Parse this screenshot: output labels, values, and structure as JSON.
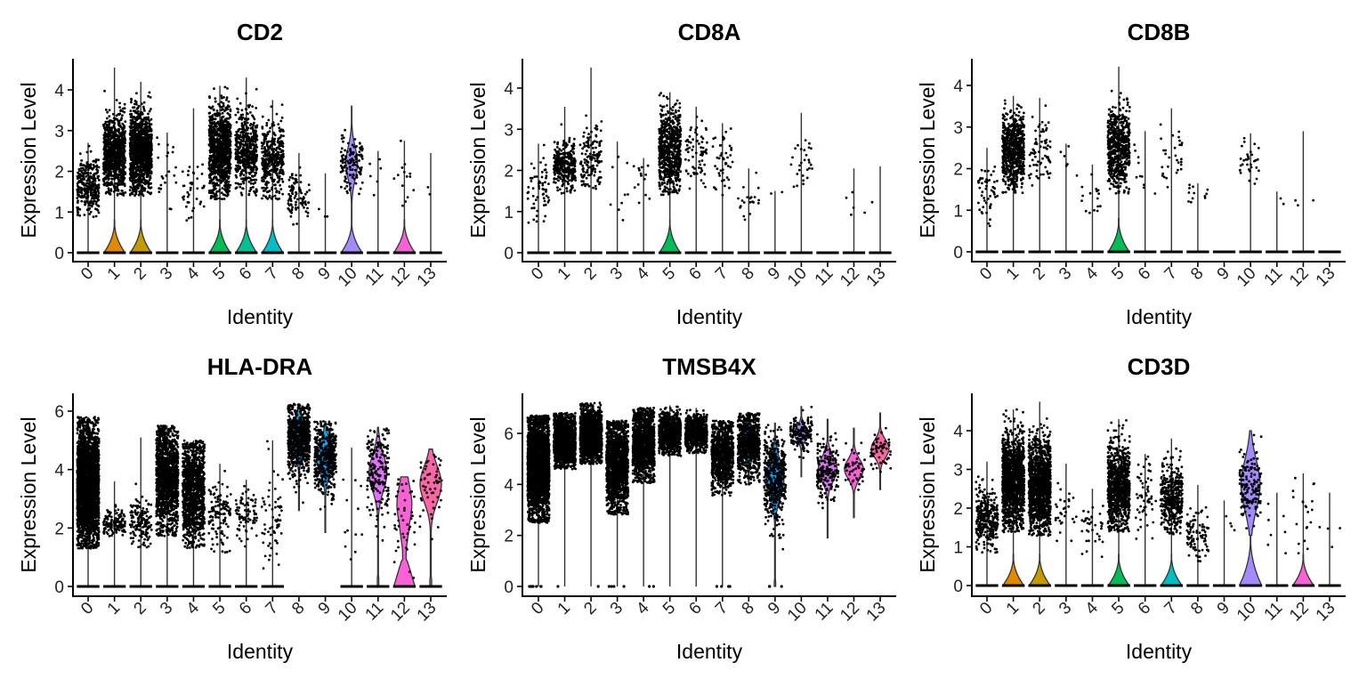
{
  "chart_data": [
    {
      "type": "violin",
      "title": "CD2",
      "xlabel": "Identity",
      "ylabel": "Expression Level",
      "categories": [
        "0",
        "1",
        "2",
        "3",
        "4",
        "5",
        "6",
        "7",
        "8",
        "9",
        "10",
        "11",
        "12",
        "13"
      ],
      "yticks": [
        0,
        1,
        2,
        3,
        4
      ],
      "ylim": [
        0,
        4.75
      ],
      "grid": false,
      "legend": "none",
      "violins": [
        {
          "max": 2.7,
          "bulge": 0.0,
          "center": 1.65,
          "spread": 0.35,
          "n": 320,
          "colored": false
        },
        {
          "max": 4.55,
          "bulge": 0.55,
          "center": 2.4,
          "spread": 0.45,
          "n": 900,
          "colored": true
        },
        {
          "max": 4.2,
          "bulge": 0.6,
          "center": 2.5,
          "spread": 0.5,
          "n": 1100,
          "colored": true
        },
        {
          "max": 2.95,
          "bulge": 0.0,
          "center": 2.0,
          "spread": 0.45,
          "n": 22,
          "colored": false
        },
        {
          "max": 3.55,
          "bulge": 0.0,
          "center": 1.5,
          "spread": 0.35,
          "n": 40,
          "colored": false
        },
        {
          "max": 4.1,
          "bulge": 0.8,
          "center": 2.5,
          "spread": 0.55,
          "n": 900,
          "colored": true
        },
        {
          "max": 4.3,
          "bulge": 0.75,
          "center": 2.5,
          "spread": 0.5,
          "n": 500,
          "colored": true
        },
        {
          "max": 3.75,
          "bulge": 0.7,
          "center": 2.3,
          "spread": 0.45,
          "n": 400,
          "colored": true
        },
        {
          "max": 2.45,
          "bulge": 0.0,
          "center": 1.35,
          "spread": 0.3,
          "n": 90,
          "colored": false
        },
        {
          "max": 1.95,
          "bulge": 0.0,
          "center": 1.2,
          "spread": 0.2,
          "n": 3,
          "colored": false
        },
        {
          "max": 3.6,
          "bulge": 1.0,
          "center": 2.2,
          "spread": 0.35,
          "n": 120,
          "colored": true
        },
        {
          "max": 2.5,
          "bulge": 0.0,
          "center": 1.8,
          "spread": 0.4,
          "n": 6,
          "colored": false
        },
        {
          "max": 2.75,
          "bulge": 0.65,
          "center": 1.8,
          "spread": 0.55,
          "n": 14,
          "colored": true
        },
        {
          "max": 2.45,
          "bulge": 0.0,
          "center": 1.9,
          "spread": 0.5,
          "n": 2,
          "colored": false
        }
      ]
    },
    {
      "type": "violin",
      "title": "CD8A",
      "xlabel": "Identity",
      "ylabel": "Expression Level",
      "categories": [
        "0",
        "1",
        "2",
        "3",
        "4",
        "5",
        "6",
        "7",
        "8",
        "9",
        "10",
        "11",
        "12",
        "13"
      ],
      "yticks": [
        0,
        1,
        2,
        3,
        4
      ],
      "ylim": [
        0,
        4.7
      ],
      "grid": false,
      "legend": "none",
      "violins": [
        {
          "max": 2.65,
          "bulge": 0.0,
          "center": 1.6,
          "spread": 0.4,
          "n": 60,
          "colored": false
        },
        {
          "max": 3.55,
          "bulge": 0.0,
          "center": 2.1,
          "spread": 0.3,
          "n": 320,
          "colored": false
        },
        {
          "max": 4.5,
          "bulge": 0.0,
          "center": 2.25,
          "spread": 0.4,
          "n": 140,
          "colored": false
        },
        {
          "max": 2.7,
          "bulge": 0.0,
          "center": 1.6,
          "spread": 0.45,
          "n": 9,
          "colored": false
        },
        {
          "max": 2.3,
          "bulge": 0.0,
          "center": 1.6,
          "spread": 0.4,
          "n": 14,
          "colored": false
        },
        {
          "max": 3.9,
          "bulge": 0.7,
          "center": 2.5,
          "spread": 0.5,
          "n": 650,
          "colored": true
        },
        {
          "max": 3.55,
          "bulge": 0.0,
          "center": 2.4,
          "spread": 0.4,
          "n": 70,
          "colored": false
        },
        {
          "max": 3.15,
          "bulge": 0.0,
          "center": 2.2,
          "spread": 0.4,
          "n": 45,
          "colored": false
        },
        {
          "max": 2.05,
          "bulge": 0.0,
          "center": 1.25,
          "spread": 0.25,
          "n": 20,
          "colored": false
        },
        {
          "max": 1.5,
          "bulge": 0.0,
          "center": 1.4,
          "spread": 0.1,
          "n": 2,
          "colored": false
        },
        {
          "max": 3.4,
          "bulge": 0.0,
          "center": 2.2,
          "spread": 0.35,
          "n": 28,
          "colored": false
        },
        {
          "max": 0.0,
          "bulge": 0.0,
          "center": 0,
          "spread": 0,
          "n": 0,
          "colored": false
        },
        {
          "max": 2.05,
          "bulge": 0.0,
          "center": 1.4,
          "spread": 0.4,
          "n": 5,
          "colored": false
        },
        {
          "max": 2.1,
          "bulge": 0.0,
          "center": 1.2,
          "spread": 0.1,
          "n": 1,
          "colored": false
        }
      ]
    },
    {
      "type": "violin",
      "title": "CD8B",
      "xlabel": "Identity",
      "ylabel": "Expression Level",
      "categories": [
        "0",
        "1",
        "2",
        "3",
        "4",
        "5",
        "6",
        "7",
        "8",
        "9",
        "10",
        "11",
        "12",
        "13"
      ],
      "yticks": [
        0,
        1,
        2,
        3,
        4
      ],
      "ylim": [
        0,
        4.6
      ],
      "grid": false,
      "legend": "none",
      "violins": [
        {
          "max": 2.5,
          "bulge": 0.0,
          "center": 1.5,
          "spread": 0.4,
          "n": 50,
          "colored": false
        },
        {
          "max": 3.75,
          "bulge": 0.0,
          "center": 2.4,
          "spread": 0.45,
          "n": 650,
          "colored": false
        },
        {
          "max": 3.7,
          "bulge": 0.0,
          "center": 2.4,
          "spread": 0.5,
          "n": 70,
          "colored": false
        },
        {
          "max": 2.6,
          "bulge": 0.0,
          "center": 2.2,
          "spread": 0.3,
          "n": 6,
          "colored": false
        },
        {
          "max": 2.1,
          "bulge": 0.0,
          "center": 1.4,
          "spread": 0.25,
          "n": 16,
          "colored": false
        },
        {
          "max": 4.45,
          "bulge": 0.75,
          "center": 2.5,
          "spread": 0.5,
          "n": 600,
          "colored": true
        },
        {
          "max": 2.9,
          "bulge": 0.0,
          "center": 1.9,
          "spread": 0.4,
          "n": 10,
          "colored": false
        },
        {
          "max": 3.45,
          "bulge": 0.0,
          "center": 2.2,
          "spread": 0.4,
          "n": 30,
          "colored": false
        },
        {
          "max": 1.65,
          "bulge": 0.0,
          "center": 1.35,
          "spread": 0.2,
          "n": 12,
          "colored": false
        },
        {
          "max": 0.0,
          "bulge": 0.0,
          "center": 0,
          "spread": 0,
          "n": 0,
          "colored": false
        },
        {
          "max": 2.85,
          "bulge": 0.0,
          "center": 2.2,
          "spread": 0.3,
          "n": 32,
          "colored": false
        },
        {
          "max": 1.45,
          "bulge": 0.0,
          "center": 1.3,
          "spread": 0.15,
          "n": 2,
          "colored": false
        },
        {
          "max": 2.9,
          "bulge": 0.0,
          "center": 1.2,
          "spread": 0.1,
          "n": 3,
          "colored": false
        },
        {
          "max": 0.0,
          "bulge": 0.0,
          "center": 0,
          "spread": 0,
          "n": 0,
          "colored": false
        }
      ]
    },
    {
      "type": "violin",
      "title": "HLA-DRA",
      "xlabel": "Identity",
      "ylabel": "Expression Level",
      "categories": [
        "0",
        "1",
        "2",
        "3",
        "4",
        "5",
        "6",
        "7",
        "8",
        "9",
        "10",
        "11",
        "12",
        "13"
      ],
      "yticks": [
        0,
        2,
        4,
        6
      ],
      "ylim": [
        0,
        6.6
      ],
      "grid": false,
      "legend": "none",
      "violins": [
        {
          "max": 5.8,
          "bulge": 0.0,
          "center": 3.5,
          "spread": 1.0,
          "n": 2600,
          "colored": false,
          "zeroStrip": true
        },
        {
          "max": 3.6,
          "bulge": 0.0,
          "center": 2.15,
          "spread": 0.25,
          "n": 130,
          "colored": false,
          "zeroStrip": true
        },
        {
          "max": 5.1,
          "bulge": 0.0,
          "center": 2.2,
          "spread": 0.4,
          "n": 140,
          "colored": false,
          "zeroStrip": true
        },
        {
          "max": 5.5,
          "bulge": 0.0,
          "center": 3.7,
          "spread": 0.9,
          "n": 1300,
          "colored": false,
          "zeroStrip": true
        },
        {
          "max": 5.0,
          "bulge": 0.0,
          "center": 3.3,
          "spread": 0.9,
          "n": 1100,
          "colored": false,
          "zeroStrip": true
        },
        {
          "max": 4.2,
          "bulge": 0.0,
          "center": 2.4,
          "spread": 0.6,
          "n": 120,
          "colored": false,
          "zeroStrip": true
        },
        {
          "max": 3.65,
          "bulge": 0.0,
          "center": 2.3,
          "spread": 0.45,
          "n": 80,
          "colored": false,
          "zeroStrip": true
        },
        {
          "max": 5.0,
          "bulge": 0.0,
          "center": 2.3,
          "spread": 0.8,
          "n": 60,
          "colored": false,
          "zeroStrip": true
        },
        {
          "max": 6.25,
          "bulge": 0.0,
          "center": 5.1,
          "spread": 0.6,
          "n": 750,
          "colored": true,
          "full": true,
          "min": 2.6,
          "width": 0.85
        },
        {
          "max": 5.65,
          "bulge": 0.0,
          "center": 4.4,
          "spread": 0.65,
          "n": 450,
          "colored": true,
          "full": true,
          "min": 1.85,
          "width": 0.75
        },
        {
          "max": 4.75,
          "bulge": 0.0,
          "center": 2.6,
          "spread": 1.0,
          "n": 12,
          "colored": false,
          "zeroStrip": true
        },
        {
          "max": 5.45,
          "bulge": 0.0,
          "center": 3.9,
          "spread": 0.8,
          "n": 190,
          "colored": true,
          "full": true,
          "min": 0.0,
          "width": 0.75
        },
        {
          "max": 3.75,
          "bulge": 0.0,
          "center": 2.4,
          "spread": 1.0,
          "n": 45,
          "colored": true,
          "full": true,
          "min": 0.0,
          "width": 0.9,
          "bottomHeavy": true
        },
        {
          "max": 4.7,
          "bulge": 0.0,
          "center": 3.5,
          "spread": 0.8,
          "n": 55,
          "colored": true,
          "full": true,
          "min": 0.0,
          "width": 0.9
        }
      ]
    },
    {
      "type": "violin",
      "title": "TMSB4X",
      "xlabel": "Identity",
      "ylabel": "Expression Level",
      "categories": [
        "0",
        "1",
        "2",
        "3",
        "4",
        "5",
        "6",
        "7",
        "8",
        "9",
        "10",
        "11",
        "12",
        "13"
      ],
      "yticks": [
        0,
        2,
        4,
        6
      ],
      "ylim": [
        0,
        7.5
      ],
      "grid": false,
      "legend": "none",
      "violins": [
        {
          "max": 6.7,
          "bulge": 0.0,
          "center": 4.7,
          "spread": 1.0,
          "n": 2600,
          "colored": false,
          "zeroStrip": false
        },
        {
          "max": 6.8,
          "bulge": 0.0,
          "center": 5.7,
          "spread": 0.5,
          "n": 1500,
          "colored": false
        },
        {
          "max": 7.2,
          "bulge": 0.0,
          "center": 5.9,
          "spread": 0.5,
          "n": 1600,
          "colored": false
        },
        {
          "max": 6.5,
          "bulge": 0.0,
          "center": 4.8,
          "spread": 0.9,
          "n": 1500,
          "colored": false
        },
        {
          "max": 7.0,
          "bulge": 0.0,
          "center": 5.6,
          "spread": 0.7,
          "n": 1300,
          "colored": false
        },
        {
          "max": 7.1,
          "bulge": 0.0,
          "center": 6.0,
          "spread": 0.4,
          "n": 900,
          "colored": false
        },
        {
          "max": 7.0,
          "bulge": 0.0,
          "center": 6.0,
          "spread": 0.35,
          "n": 700,
          "colored": false
        },
        {
          "max": 6.5,
          "bulge": 0.0,
          "center": 5.1,
          "spread": 0.7,
          "n": 900,
          "colored": false
        },
        {
          "max": 6.8,
          "bulge": 0.0,
          "center": 5.6,
          "spread": 0.65,
          "n": 750,
          "colored": true,
          "full": true,
          "min": 4.0,
          "width": 0.6
        },
        {
          "max": 6.4,
          "bulge": 0.0,
          "center": 4.2,
          "spread": 0.9,
          "n": 450,
          "colored": true,
          "full": true,
          "min": 0.0,
          "width": 0.75
        },
        {
          "max": 7.05,
          "bulge": 0.0,
          "center": 6.0,
          "spread": 0.35,
          "n": 150,
          "colored": true,
          "full": true,
          "min": 4.3,
          "width": 0.6
        },
        {
          "max": 6.55,
          "bulge": 0.0,
          "center": 4.6,
          "spread": 0.6,
          "n": 190,
          "colored": true,
          "full": true,
          "min": 1.9,
          "width": 0.8
        },
        {
          "max": 6.2,
          "bulge": 0.0,
          "center": 4.6,
          "spread": 0.5,
          "n": 45,
          "colored": true,
          "full": true,
          "min": 2.7,
          "width": 0.8
        },
        {
          "max": 6.8,
          "bulge": 0.0,
          "center": 5.4,
          "spread": 0.45,
          "n": 55,
          "colored": true,
          "full": true,
          "min": 3.8,
          "width": 0.75
        }
      ]
    },
    {
      "type": "violin",
      "title": "CD3D",
      "xlabel": "Identity",
      "ylabel": "Expression Level",
      "categories": [
        "0",
        "1",
        "2",
        "3",
        "4",
        "5",
        "6",
        "7",
        "8",
        "9",
        "10",
        "11",
        "12",
        "13"
      ],
      "yticks": [
        0,
        1,
        2,
        3,
        4
      ],
      "ylim": [
        0,
        4.95
      ],
      "grid": false,
      "legend": "none",
      "violins": [
        {
          "max": 3.2,
          "bulge": 0.0,
          "center": 1.7,
          "spread": 0.4,
          "n": 320,
          "colored": false
        },
        {
          "max": 4.55,
          "bulge": 0.55,
          "center": 2.7,
          "spread": 0.6,
          "n": 1300,
          "colored": true
        },
        {
          "max": 4.75,
          "bulge": 0.55,
          "center": 2.6,
          "spread": 0.6,
          "n": 1300,
          "colored": true
        },
        {
          "max": 3.15,
          "bulge": 0.0,
          "center": 2.0,
          "spread": 0.4,
          "n": 30,
          "colored": false
        },
        {
          "max": 2.5,
          "bulge": 0.0,
          "center": 1.6,
          "spread": 0.4,
          "n": 35,
          "colored": false
        },
        {
          "max": 4.3,
          "bulge": 0.75,
          "center": 2.6,
          "spread": 0.55,
          "n": 900,
          "colored": true
        },
        {
          "max": 3.4,
          "bulge": 0.0,
          "center": 2.3,
          "spread": 0.5,
          "n": 55,
          "colored": false
        },
        {
          "max": 3.8,
          "bulge": 0.7,
          "center": 2.3,
          "spread": 0.45,
          "n": 400,
          "colored": true
        },
        {
          "max": 2.6,
          "bulge": 0.0,
          "center": 1.35,
          "spread": 0.35,
          "n": 90,
          "colored": false
        },
        {
          "max": 2.2,
          "bulge": 0.0,
          "center": 1.6,
          "spread": 0.35,
          "n": 4,
          "colored": false
        },
        {
          "max": 4.0,
          "bulge": 1.0,
          "center": 2.5,
          "spread": 0.5,
          "n": 150,
          "colored": true,
          "wide": true
        },
        {
          "max": 2.4,
          "bulge": 0.0,
          "center": 1.6,
          "spread": 0.45,
          "n": 7,
          "colored": false
        },
        {
          "max": 2.9,
          "bulge": 0.65,
          "center": 1.9,
          "spread": 0.55,
          "n": 20,
          "colored": true
        },
        {
          "max": 2.4,
          "bulge": 0.0,
          "center": 1.5,
          "spread": 0.3,
          "n": 4,
          "colored": false
        }
      ]
    }
  ],
  "palette": [
    "#F8766D",
    "#E38900",
    "#C49A00",
    "#99A800",
    "#53B400",
    "#00BC56",
    "#00C094",
    "#00BFC4",
    "#00B6EB",
    "#06A4FF",
    "#A58AFF",
    "#DF70F8",
    "#FB61D7",
    "#FF66A8"
  ]
}
